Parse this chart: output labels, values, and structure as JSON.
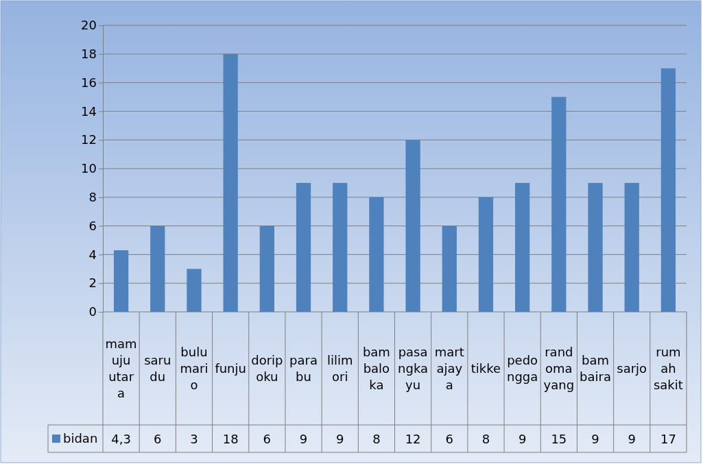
{
  "chart_data": {
    "type": "bar",
    "categories": [
      "mamuju utara",
      "sarudu",
      "bulumario",
      "funju",
      "doripoku",
      "parabu",
      "lilimori",
      "bambaloka",
      "pasangkayu",
      "martajaya",
      "tikke",
      "pedongga",
      "randomayang",
      "bambaira",
      "sarjo",
      "rumah sakit"
    ],
    "series": [
      {
        "name": "bidan",
        "color": "#4f81bd",
        "values": [
          4.3,
          6,
          3,
          18,
          6,
          9,
          9,
          8,
          12,
          6,
          8,
          9,
          15,
          9,
          9,
          17
        ],
        "value_labels": [
          "4,3",
          "6",
          "3",
          "18",
          "6",
          "9",
          "9",
          "8",
          "12",
          "6",
          "8",
          "9",
          "15",
          "9",
          "9",
          "17"
        ]
      }
    ],
    "ylim": [
      0,
      20
    ],
    "yticks": [
      0,
      2,
      4,
      6,
      8,
      10,
      12,
      14,
      16,
      18,
      20
    ],
    "grid": "y",
    "legend": "bottom left"
  }
}
